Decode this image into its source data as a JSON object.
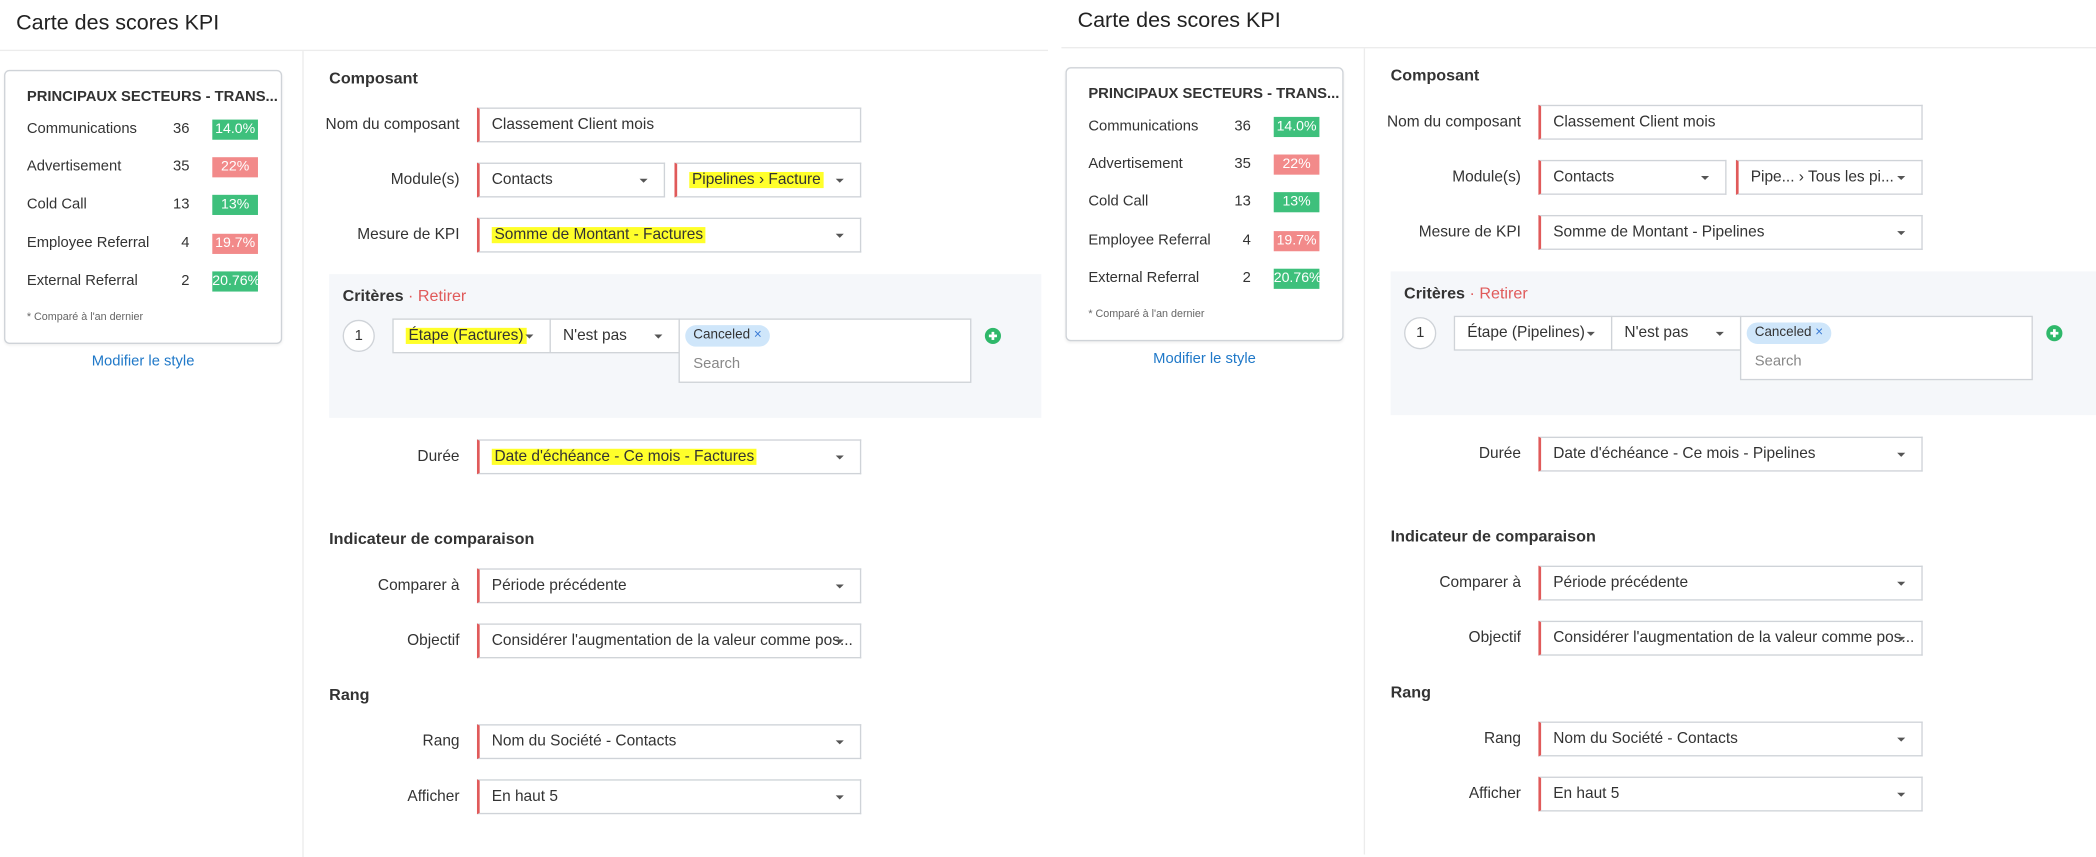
{
  "panels": [
    {
      "title": "Carte des scores KPI",
      "preview": {
        "title": "PRINCIPAUX SECTEURS - TRANS...",
        "rows": [
          {
            "label": "Communications",
            "value": 36,
            "badge": "14.0%",
            "color": "#3ec07c"
          },
          {
            "label": "Advertisement",
            "value": 35,
            "badge": "22%",
            "color": "#f28a8a"
          },
          {
            "label": "Cold Call",
            "value": 13,
            "badge": "13%",
            "color": "#3ec07c"
          },
          {
            "label": "Employee Referral",
            "value": 4,
            "badge": "19.7%",
            "color": "#f28a8a"
          },
          {
            "label": "External Referral",
            "value": 2,
            "badge": "20.76%",
            "color": "#3ec07c"
          }
        ],
        "note": "* Comparé à l'an dernier",
        "link": "Modifier le style"
      },
      "sections": [
        {
          "heading": "Composant",
          "fields": [
            {
              "label": "Nom du composant",
              "inputs": [
                {
                  "text": "Classement Client mois",
                  "dropdown": false,
                  "highlight": false
                }
              ]
            },
            {
              "label": "Module(s)",
              "inputs": [
                {
                  "text": "Contacts",
                  "dropdown": true,
                  "highlight": false
                },
                {
                  "text": "Pipelines › Facture",
                  "dropdown": true,
                  "highlight": true
                }
              ]
            },
            {
              "label": "Mesure de KPI",
              "inputs": [
                {
                  "text": "Somme de Montant - Factures",
                  "dropdown": true,
                  "highlight": true
                }
              ]
            }
          ]
        },
        {
          "criteria": {
            "heading": "Critères",
            "action": "Retirer",
            "rows": [
              {
                "index": 1,
                "field": "Étape (Factures)",
                "highlight": true,
                "operator": "N'est pas",
                "tags": [
                  "Canceled"
                ],
                "placeholder": "Search"
              }
            ]
          }
        },
        {
          "fields": [
            {
              "label": "Durée",
              "inputs": [
                {
                  "text": "Date d'échéance - Ce mois - Factures",
                  "dropdown": true,
                  "highlight": true
                }
              ]
            }
          ]
        },
        {
          "heading": "Indicateur de comparaison",
          "fields": [
            {
              "label": "Comparer à",
              "inputs": [
                {
                  "text": "Période précédente",
                  "dropdown": true,
                  "highlight": false
                }
              ]
            },
            {
              "label": "Objectif",
              "inputs": [
                {
                  "text": "Considérer l'augmentation de la valeur comme pos...",
                  "dropdown": true,
                  "highlight": false
                }
              ]
            }
          ]
        },
        {
          "heading": "Rang",
          "fields": [
            {
              "label": "Rang",
              "inputs": [
                {
                  "text": "Nom du Société - Contacts",
                  "dropdown": true,
                  "highlight": false
                }
              ]
            },
            {
              "label": "Afficher",
              "inputs": [
                {
                  "text": "En haut 5",
                  "dropdown": true,
                  "highlight": false
                }
              ]
            }
          ]
        }
      ]
    },
    {
      "title": "Carte des scores KPI",
      "preview": {
        "title": "PRINCIPAUX SECTEURS - TRANS...",
        "rows": [
          {
            "label": "Communications",
            "value": 36,
            "badge": "14.0%",
            "color": "#3ec07c"
          },
          {
            "label": "Advertisement",
            "value": 35,
            "badge": "22%",
            "color": "#f28a8a"
          },
          {
            "label": "Cold Call",
            "value": 13,
            "badge": "13%",
            "color": "#3ec07c"
          },
          {
            "label": "Employee Referral",
            "value": 4,
            "badge": "19.7%",
            "color": "#f28a8a"
          },
          {
            "label": "External Referral",
            "value": 2,
            "badge": "20.76%",
            "color": "#3ec07c"
          }
        ],
        "note": "* Comparé à l'an dernier",
        "link": "Modifier le style"
      },
      "sections": [
        {
          "heading": "Composant",
          "fields": [
            {
              "label": "Nom du composant",
              "inputs": [
                {
                  "text": "Classement Client mois",
                  "dropdown": false,
                  "highlight": false
                }
              ]
            },
            {
              "label": "Module(s)",
              "inputs": [
                {
                  "text": "Contacts",
                  "dropdown": true,
                  "highlight": false
                },
                {
                  "text": "Pipe... › Tous les pi...",
                  "dropdown": true,
                  "highlight": false
                }
              ]
            },
            {
              "label": "Mesure de KPI",
              "inputs": [
                {
                  "text": "Somme de Montant - Pipelines",
                  "dropdown": true,
                  "highlight": false
                }
              ]
            }
          ]
        },
        {
          "criteria": {
            "heading": "Critères",
            "action": "Retirer",
            "rows": [
              {
                "index": 1,
                "field": "Étape (Pipelines)",
                "highlight": false,
                "operator": "N'est pas",
                "tags": [
                  "Canceled"
                ],
                "placeholder": "Search"
              }
            ]
          }
        },
        {
          "fields": [
            {
              "label": "Durée",
              "inputs": [
                {
                  "text": "Date d'échéance - Ce mois - Pipelines",
                  "dropdown": true,
                  "highlight": false
                }
              ]
            }
          ]
        },
        {
          "heading": "Indicateur de comparaison",
          "fields": [
            {
              "label": "Comparer à",
              "inputs": [
                {
                  "text": "Période précédente",
                  "dropdown": true,
                  "highlight": false
                }
              ]
            },
            {
              "label": "Objectif",
              "inputs": [
                {
                  "text": "Considérer l'augmentation de la valeur comme pos...",
                  "dropdown": true,
                  "highlight": false
                }
              ]
            }
          ]
        },
        {
          "heading": "Rang",
          "fields": [
            {
              "label": "Rang",
              "inputs": [
                {
                  "text": "Nom du Société - Contacts",
                  "dropdown": true,
                  "highlight": false
                }
              ]
            },
            {
              "label": "Afficher",
              "inputs": [
                {
                  "text": "En haut 5",
                  "dropdown": true,
                  "highlight": false
                }
              ]
            }
          ]
        }
      ]
    }
  ]
}
